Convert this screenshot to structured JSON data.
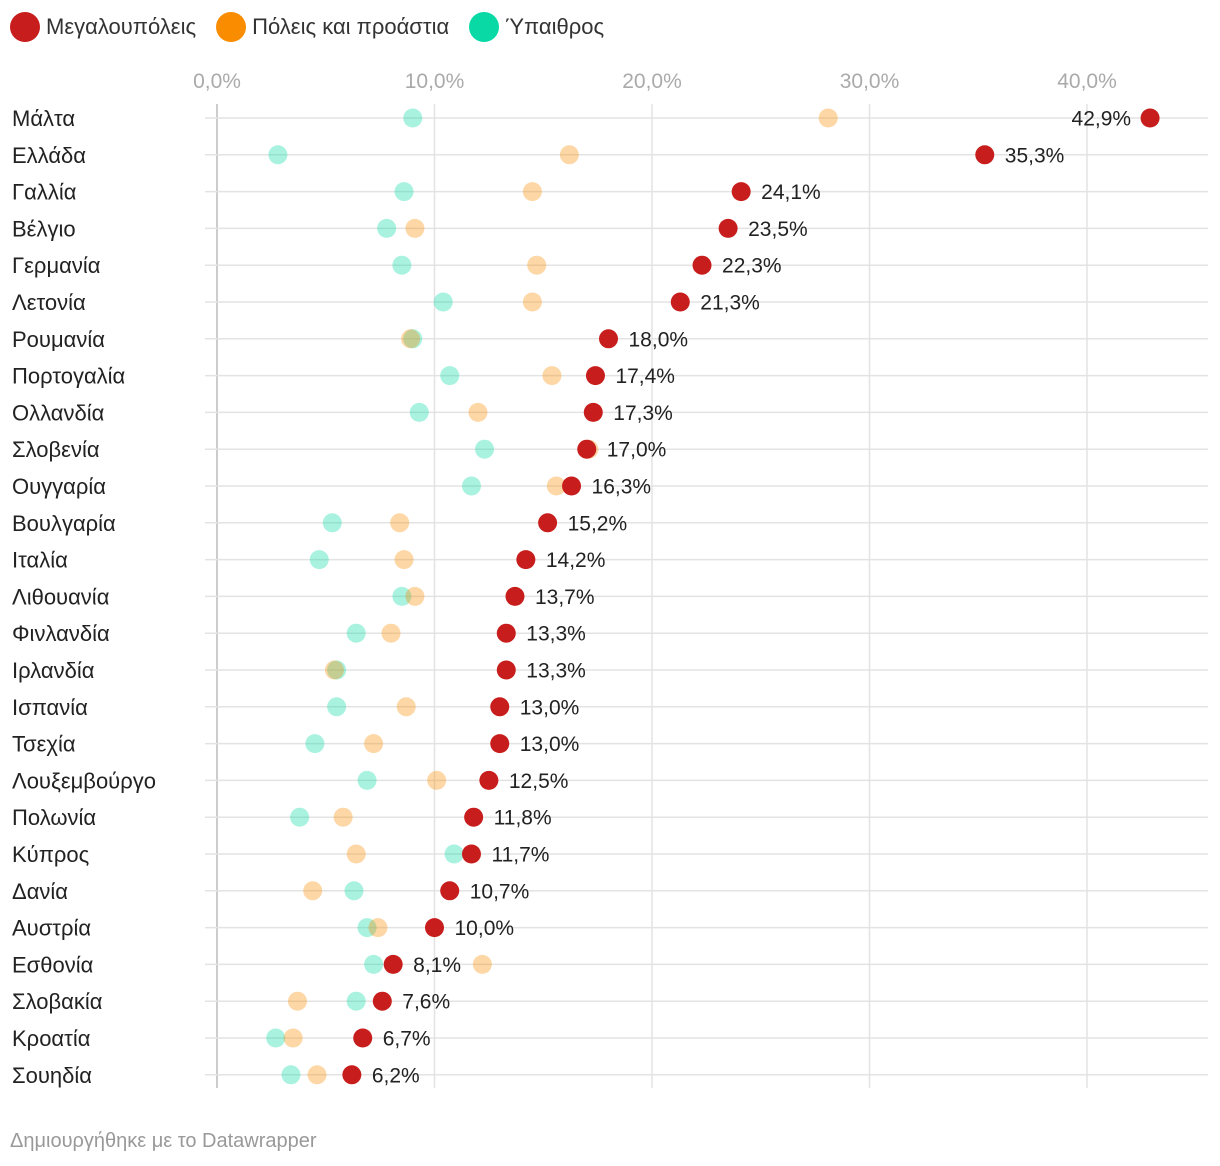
{
  "colors": {
    "metro": "#c71e1d",
    "towns": "#fa8c00",
    "rural": "#09d9a5",
    "grid": "#e3e3e3",
    "axis": "#cccccc"
  },
  "legend": [
    {
      "label": "Μεγαλουπόλεις",
      "color": "#c71e1d"
    },
    {
      "label": "Πόλεις και προάστια",
      "color": "#fa8c00"
    },
    {
      "label": "Ύπαιθρος",
      "color": "#09d9a5"
    }
  ],
  "footer": "Δημιουργήθηκε με το Datawrapper",
  "chart_data": {
    "type": "scatter",
    "subtype": "dot-range",
    "title": "",
    "xlabel": "",
    "ylabel": "",
    "xlim": [
      0,
      45
    ],
    "x_ticks": [
      0,
      10,
      20,
      30,
      40
    ],
    "x_tick_labels": [
      "0,0%",
      "10,0%",
      "20,0%",
      "30,0%",
      "40,0%"
    ],
    "grid": true,
    "legend_position": "top-left",
    "categories": [
      "Μάλτα",
      "Ελλάδα",
      "Γαλλία",
      "Βέλγιο",
      "Γερμανία",
      "Λετονία",
      "Ρουμανία",
      "Πορτογαλία",
      "Ολλανδία",
      "Σλοβενία",
      "Ουγγαρία",
      "Βουλγαρία",
      "Ιταλία",
      "Λιθουανία",
      "Φινλανδία",
      "Ιρλανδία",
      "Ισπανία",
      "Τσεχία",
      "Λουξεμβούργο",
      "Πολωνία",
      "Κύπρος",
      "Δανία",
      "Αυστρία",
      "Εσθονία",
      "Σλοβακία",
      "Κροατία",
      "Σουηδία"
    ],
    "value_labels": [
      "42,9%",
      "35,3%",
      "24,1%",
      "23,5%",
      "22,3%",
      "21,3%",
      "18,0%",
      "17,4%",
      "17,3%",
      "17,0%",
      "16,3%",
      "15,2%",
      "14,2%",
      "13,7%",
      "13,3%",
      "13,3%",
      "13,0%",
      "13,0%",
      "12,5%",
      "11,8%",
      "11,7%",
      "10,7%",
      "10,0%",
      "8,1%",
      "7,6%",
      "6,7%",
      "6,2%"
    ],
    "series": [
      {
        "name": "Μεγαλουπόλεις",
        "color": "#c71e1d",
        "values": [
          42.9,
          35.3,
          24.1,
          23.5,
          22.3,
          21.3,
          18.0,
          17.4,
          17.3,
          17.0,
          16.3,
          15.2,
          14.2,
          13.7,
          13.3,
          13.3,
          13.0,
          13.0,
          12.5,
          11.8,
          11.7,
          10.7,
          10.0,
          8.1,
          7.6,
          6.7,
          6.2
        ]
      },
      {
        "name": "Πόλεις και προάστια",
        "color": "#fa8c00",
        "values": [
          28.1,
          16.2,
          14.5,
          9.1,
          14.7,
          14.5,
          8.9,
          15.4,
          12.0,
          17.1,
          15.6,
          8.4,
          8.6,
          9.1,
          8.0,
          5.4,
          8.7,
          7.2,
          10.1,
          5.8,
          6.4,
          4.4,
          7.4,
          12.2,
          3.7,
          3.5,
          4.6
        ]
      },
      {
        "name": "Ύπαιθρος",
        "color": "#09d9a5",
        "values": [
          9.0,
          2.8,
          8.6,
          7.8,
          8.5,
          10.4,
          9.0,
          10.7,
          9.3,
          12.3,
          11.7,
          5.3,
          4.7,
          8.5,
          6.4,
          5.5,
          5.5,
          4.5,
          6.9,
          3.8,
          10.9,
          6.3,
          6.9,
          7.2,
          6.4,
          2.7,
          3.4
        ]
      }
    ]
  }
}
